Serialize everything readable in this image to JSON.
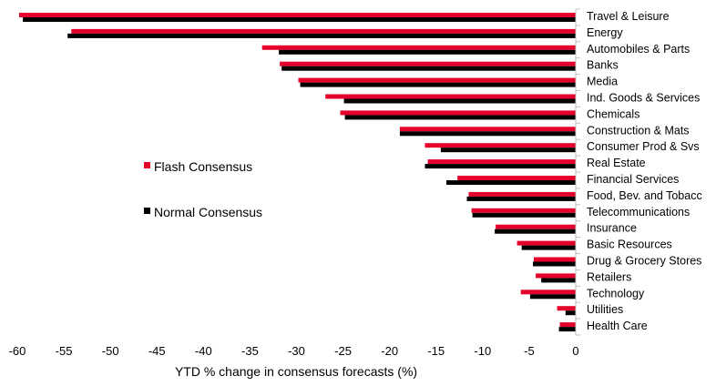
{
  "chart_data": {
    "type": "bar",
    "orientation": "horizontal",
    "xlabel": "YTD % change in consensus forecasts (%)",
    "xlim": [
      -60,
      0
    ],
    "xticks": [
      -60,
      -55,
      -50,
      -45,
      -40,
      -35,
      -30,
      -25,
      -20,
      -15,
      -10,
      -5,
      0
    ],
    "grid": false,
    "legend_position": "left-middle",
    "categories": [
      "Travel & Leisure",
      "Energy",
      "Automobiles & Parts",
      "Banks",
      "Media",
      "Ind. Goods & Services",
      "Chemicals",
      "Construction & Mats",
      "Consumer Prod & Svs",
      "Real Estate",
      "Financial Services",
      "Food, Bev. and Tobacc",
      "Telecommunications",
      "Insurance",
      "Basic Resources",
      "Drug & Grocery Stores",
      "Retailers",
      "Technology",
      "Utilities",
      "Health Care"
    ],
    "series": [
      {
        "name": "Flash Consensus",
        "color": "#e4002b",
        "values": [
          -59.8,
          -54.2,
          -33.7,
          -31.8,
          -29.8,
          -26.9,
          -25.3,
          -18.9,
          -16.2,
          -15.9,
          -12.7,
          -11.5,
          -11.2,
          -8.6,
          -6.3,
          -4.5,
          -4.3,
          -5.9,
          -2.0,
          -1.7
        ]
      },
      {
        "name": "Normal Consensus",
        "color": "#000000",
        "values": [
          -59.4,
          -54.6,
          -31.9,
          -31.6,
          -29.6,
          -24.9,
          -24.8,
          -18.9,
          -14.5,
          -16.2,
          -13.9,
          -11.7,
          -11.1,
          -8.7,
          -5.8,
          -4.6,
          -3.7,
          -4.9,
          -1.1,
          -1.8
        ]
      }
    ]
  }
}
